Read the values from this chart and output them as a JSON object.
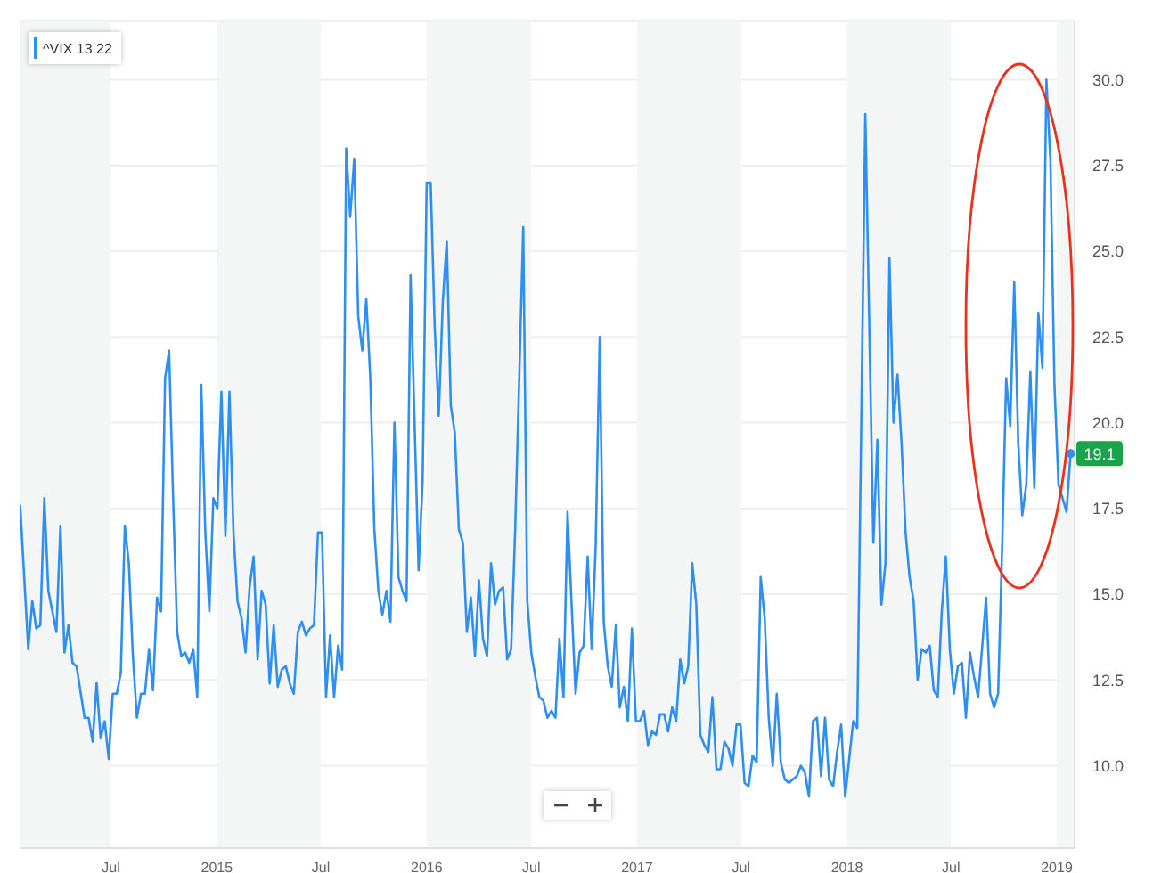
{
  "chart_data": {
    "type": "line",
    "x": [
      "2014-01-24",
      "2014-02-07",
      "2014-02-14",
      "2014-02-21",
      "2014-02-28",
      "2014-03-07",
      "2014-03-14",
      "2014-03-28",
      "2014-04-04",
      "2014-04-11",
      "2014-04-18",
      "2014-04-25",
      "2014-05-02",
      "2014-05-16",
      "2014-05-23",
      "2014-05-30",
      "2014-06-06",
      "2014-06-13",
      "2014-06-20",
      "2014-06-27",
      "2014-07-04",
      "2014-07-11",
      "2014-07-18",
      "2014-07-25",
      "2014-08-01",
      "2014-08-08",
      "2014-08-15",
      "2014-08-22",
      "2014-08-29",
      "2014-09-05",
      "2014-09-12",
      "2014-09-19",
      "2014-09-26",
      "2014-10-03",
      "2014-10-10",
      "2014-10-17",
      "2014-10-24",
      "2014-10-31",
      "2014-11-07",
      "2014-11-14",
      "2014-11-21",
      "2014-11-28",
      "2014-12-05",
      "2014-12-12",
      "2014-12-19",
      "2014-12-26",
      "2015-01-02",
      "2015-01-09",
      "2015-01-16",
      "2015-01-23",
      "2015-01-30",
      "2015-02-06",
      "2015-02-13",
      "2015-02-20",
      "2015-02-27",
      "2015-03-06",
      "2015-03-13",
      "2015-03-20",
      "2015-03-27",
      "2015-04-03",
      "2015-04-10",
      "2015-04-17",
      "2015-04-24",
      "2015-05-01",
      "2015-05-08",
      "2015-05-15",
      "2015-05-22",
      "2015-05-29",
      "2015-06-05",
      "2015-06-12",
      "2015-06-19",
      "2015-06-26",
      "2015-07-03",
      "2015-07-10",
      "2015-07-17",
      "2015-07-24",
      "2015-07-31",
      "2015-08-07",
      "2015-08-14",
      "2015-08-21",
      "2015-08-28",
      "2015-09-04",
      "2015-09-11",
      "2015-09-18",
      "2015-09-25",
      "2015-10-02",
      "2015-10-09",
      "2015-10-16",
      "2015-10-23",
      "2015-10-30",
      "2015-11-06",
      "2015-11-13",
      "2015-11-20",
      "2015-11-27",
      "2015-12-04",
      "2015-12-18",
      "2015-12-25",
      "2016-01-01",
      "2016-01-08",
      "2016-01-15",
      "2016-01-22",
      "2016-01-29",
      "2016-02-05",
      "2016-02-12",
      "2016-02-19",
      "2016-02-26",
      "2016-03-04",
      "2016-03-11",
      "2016-03-18",
      "2016-03-25",
      "2016-04-01",
      "2016-04-08",
      "2016-04-15",
      "2016-04-22",
      "2016-04-29",
      "2016-05-06",
      "2016-05-13",
      "2016-05-20",
      "2016-05-27",
      "2016-06-03",
      "2016-06-17",
      "2016-06-24",
      "2016-07-01",
      "2016-07-08",
      "2016-07-15",
      "2016-07-22",
      "2016-07-29",
      "2016-08-05",
      "2016-08-12",
      "2016-08-19",
      "2016-08-26",
      "2016-09-02",
      "2016-09-16",
      "2016-09-23",
      "2016-09-30",
      "2016-10-07",
      "2016-10-14",
      "2016-10-21",
      "2016-10-28",
      "2016-11-04",
      "2016-11-11",
      "2016-11-18",
      "2016-11-25",
      "2016-12-02",
      "2016-12-09",
      "2016-12-16",
      "2016-12-23",
      "2016-12-30",
      "2017-01-06",
      "2017-01-13",
      "2017-01-20",
      "2017-01-27",
      "2017-02-03",
      "2017-02-10",
      "2017-02-17",
      "2017-02-24",
      "2017-03-03",
      "2017-03-10",
      "2017-03-17",
      "2017-03-24",
      "2017-03-31",
      "2017-04-07",
      "2017-04-14",
      "2017-04-21",
      "2017-04-28",
      "2017-05-05",
      "2017-05-12",
      "2017-05-19",
      "2017-05-26",
      "2017-06-02",
      "2017-06-09",
      "2017-06-16",
      "2017-06-23",
      "2017-06-30",
      "2017-07-07",
      "2017-07-14",
      "2017-07-21",
      "2017-07-28",
      "2017-08-04",
      "2017-08-11",
      "2017-08-18",
      "2017-08-25",
      "2017-09-01",
      "2017-09-08",
      "2017-09-15",
      "2017-09-22",
      "2017-09-29",
      "2017-10-06",
      "2017-10-13",
      "2017-10-20",
      "2017-10-27",
      "2017-11-03",
      "2017-11-10",
      "2017-11-17",
      "2017-11-24",
      "2017-12-01",
      "2017-12-08",
      "2017-12-15",
      "2017-12-22",
      "2017-12-29",
      "2018-01-05",
      "2018-01-12",
      "2018-01-19",
      "2018-02-02",
      "2018-02-16",
      "2018-02-23",
      "2018-03-02",
      "2018-03-09",
      "2018-03-16",
      "2018-03-23",
      "2018-03-30",
      "2018-04-06",
      "2018-04-13",
      "2018-04-20",
      "2018-04-27",
      "2018-05-04",
      "2018-05-11",
      "2018-05-18",
      "2018-05-25",
      "2018-06-01",
      "2018-06-08",
      "2018-06-15",
      "2018-06-22",
      "2018-06-29",
      "2018-07-06",
      "2018-07-13",
      "2018-07-20",
      "2018-07-27",
      "2018-08-03",
      "2018-08-10",
      "2018-08-17",
      "2018-08-24",
      "2018-08-31",
      "2018-09-07",
      "2018-09-14",
      "2018-09-21",
      "2018-09-28",
      "2018-10-05",
      "2018-10-12",
      "2018-10-19",
      "2018-10-26",
      "2018-11-02",
      "2018-11-09",
      "2018-11-16",
      "2018-11-23",
      "2018-11-30",
      "2018-12-07",
      "2018-12-14",
      "2018-12-21",
      "2018-12-28",
      "2019-01-04",
      "2019-01-11",
      "2019-01-18",
      "2019-01-25"
    ],
    "series": [
      {
        "name": "^VIX 13.22",
        "color": "#2f8ff0",
        "values": [
          17.6,
          13.4,
          14.8,
          14.0,
          14.1,
          17.8,
          15.1,
          13.9,
          17.0,
          13.3,
          14.1,
          13.0,
          12.9,
          11.4,
          11.4,
          10.7,
          12.4,
          10.8,
          11.3,
          10.2,
          12.1,
          12.1,
          12.7,
          17.0,
          15.9,
          13.2,
          11.4,
          12.1,
          12.1,
          13.4,
          12.2,
          14.9,
          14.5,
          21.3,
          22.1,
          17.8,
          13.9,
          13.2,
          13.3,
          13.0,
          13.4,
          12.0,
          21.1,
          16.8,
          14.5,
          17.8,
          17.5,
          20.9,
          16.7,
          20.9,
          16.8,
          14.8,
          14.3,
          13.3,
          15.2,
          16.1,
          13.1,
          15.1,
          14.7,
          12.4,
          14.1,
          12.3,
          12.8,
          12.9,
          12.4,
          12.1,
          13.9,
          14.2,
          13.8,
          14.0,
          14.1,
          16.8,
          16.8,
          12.0,
          13.8,
          12.0,
          13.5,
          12.8,
          28.0,
          26.0,
          27.7,
          23.1,
          22.1,
          23.6,
          21.3,
          16.9,
          15.1,
          14.4,
          15.1,
          14.2,
          20.0,
          15.5,
          15.1,
          14.8,
          24.3,
          15.7,
          18.3,
          27.0,
          27.0,
          22.8,
          20.2,
          23.5,
          25.3,
          20.5,
          19.7,
          16.9,
          16.5,
          13.9,
          14.9,
          13.2,
          15.4,
          13.7,
          13.2,
          15.9,
          14.7,
          15.1,
          15.2,
          13.1,
          13.4,
          16.9,
          25.7,
          14.8,
          13.3,
          12.6,
          12.0,
          11.9,
          11.4,
          11.6,
          11.4,
          13.7,
          12.0,
          17.4,
          12.1,
          13.3,
          13.5,
          16.1,
          13.4,
          16.4,
          22.5,
          14.2,
          12.9,
          12.3,
          14.1,
          11.7,
          12.3,
          11.3,
          14.0,
          11.3,
          11.3,
          11.6,
          10.6,
          11.0,
          10.9,
          11.5,
          11.5,
          11.0,
          11.7,
          11.3,
          13.1,
          12.4,
          12.9,
          15.9,
          14.7,
          10.9,
          10.6,
          10.4,
          12.0,
          9.9,
          9.9,
          10.7,
          10.5,
          10.0,
          11.2,
          11.2,
          9.5,
          9.4,
          10.3,
          10.1,
          15.5,
          14.3,
          11.4,
          10.0,
          12.1,
          10.1,
          9.6,
          9.5,
          9.6,
          9.7,
          10.0,
          9.8,
          9.1,
          11.3,
          11.4,
          9.7,
          11.4,
          9.6,
          9.4,
          10.4,
          11.2,
          9.1,
          10.2,
          11.3,
          11.1,
          29.0,
          16.5,
          19.5,
          14.7,
          15.9,
          24.8,
          20.0,
          21.4,
          19.4,
          16.8,
          15.5,
          14.8,
          12.5,
          13.4,
          13.3,
          13.5,
          12.2,
          12.0,
          14.5,
          16.1,
          13.4,
          12.1,
          12.9,
          13.0,
          11.4,
          13.3,
          12.6,
          12.0,
          13.4,
          14.9,
          12.1,
          11.7,
          12.1,
          16.4,
          21.3,
          19.9,
          24.1,
          19.4,
          17.3,
          18.2,
          21.5,
          18.1,
          23.2,
          21.6,
          30.0,
          27.6,
          21.1,
          18.2,
          17.8,
          17.4,
          19.1
        ]
      }
    ],
    "xlim": [
      "2014-01-23",
      "2019-02-01"
    ],
    "xticks": [
      {
        "value": "2014-07-01",
        "label": "Jul"
      },
      {
        "value": "2015-01-01",
        "label": "2015"
      },
      {
        "value": "2015-07-01",
        "label": "Jul"
      },
      {
        "value": "2016-01-01",
        "label": "2016"
      },
      {
        "value": "2016-07-01",
        "label": "Jul"
      },
      {
        "value": "2017-01-01",
        "label": "2017"
      },
      {
        "value": "2017-07-01",
        "label": "Jul"
      },
      {
        "value": "2018-01-01",
        "label": "2018"
      },
      {
        "value": "2018-07-01",
        "label": "Jul"
      },
      {
        "value": "2019-01-01",
        "label": "2019"
      }
    ],
    "ylim": [
      7.6,
      31.7
    ],
    "yticks": [
      {
        "value": 10,
        "label": "10.0"
      },
      {
        "value": 12.5,
        "label": "12.5"
      },
      {
        "value": 15,
        "label": "15.0"
      },
      {
        "value": 17.5,
        "label": "17.5"
      },
      {
        "value": 20,
        "label": "20.0"
      },
      {
        "value": 22.5,
        "label": "22.5"
      },
      {
        "value": 25,
        "label": "25.0"
      },
      {
        "value": 27.5,
        "label": "27.5"
      },
      {
        "value": 30,
        "label": "30.0"
      }
    ],
    "bands": [
      {
        "axis": "x",
        "from": "2014-01-23",
        "to": "2014-07-01",
        "color": "#f4f6f6"
      },
      {
        "axis": "x",
        "from": "2015-01-01",
        "to": "2015-07-01",
        "color": "#f4f6f6"
      },
      {
        "axis": "x",
        "from": "2016-01-01",
        "to": "2016-07-01",
        "color": "#f4f6f6"
      },
      {
        "axis": "x",
        "from": "2017-01-01",
        "to": "2017-07-01",
        "color": "#f4f6f6"
      },
      {
        "axis": "x",
        "from": "2018-01-01",
        "to": "2018-07-01",
        "color": "#f4f6f6"
      },
      {
        "axis": "x",
        "from": "2019-01-01",
        "to": "2019-02-01",
        "color": "#f4f6f6"
      }
    ],
    "annotations": [
      {
        "text": "19.1",
        "x": "2019-01-25",
        "y": 19.1
      }
    ],
    "grid": "y",
    "legend": "top left"
  }
}
